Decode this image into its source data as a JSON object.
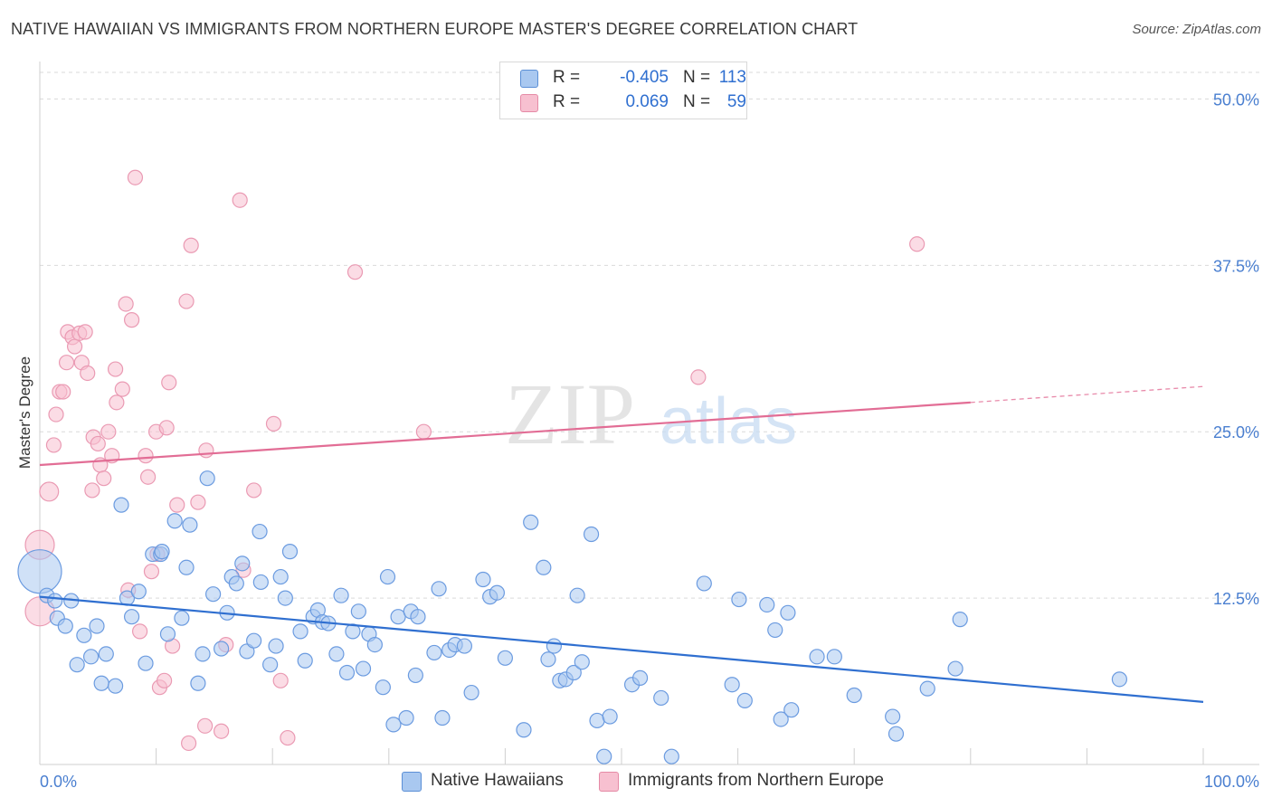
{
  "header": {
    "title": "NATIVE HAWAIIAN VS IMMIGRANTS FROM NORTHERN EUROPE MASTER'S DEGREE CORRELATION CHART",
    "source": "Source: ZipAtlas.com"
  },
  "watermark": {
    "zip": "ZIP",
    "atlas": "atlas"
  },
  "legend": {
    "rows": [
      {
        "r_label": "R =",
        "r_value": "-0.405",
        "n_label": "N =",
        "n_value": "113",
        "color": "#a9c8f0",
        "border": "#5b8fd6"
      },
      {
        "r_label": "R =",
        "r_value": "0.069",
        "n_label": "N =",
        "n_value": "59",
        "color": "#f7c0d0",
        "border": "#e58aa6"
      }
    ]
  },
  "bottom_legend": [
    {
      "label": "Native Hawaiians",
      "color": "#a9c8f0",
      "border": "#5b8fd6"
    },
    {
      "label": "Immigrants from Northern Europe",
      "color": "#f7c0d0",
      "border": "#e58aa6"
    }
  ],
  "chart_data": {
    "type": "scatter",
    "title": "NATIVE HAWAIIAN VS IMMIGRANTS FROM NORTHERN EUROPE MASTER'S DEGREE CORRELATION CHART",
    "xlabel": "",
    "ylabel": "Master's Degree",
    "xlim": [
      0,
      100
    ],
    "ylim": [
      0,
      52
    ],
    "x_tick_labels": [
      "0.0%",
      "100.0%"
    ],
    "y_ticks": [
      12.5,
      25.0,
      37.5,
      50.0
    ],
    "y_tick_labels": [
      "12.5%",
      "25.0%",
      "37.5%",
      "50.0%"
    ],
    "grid": true,
    "colors": {
      "blue_fill": "#a9c8f0",
      "blue_stroke": "#6b9be0",
      "blue_line": "#2f6fd0",
      "pink_fill": "#f7c0d0",
      "pink_stroke": "#ea9ab3",
      "pink_line": "#e26d95",
      "tick_text": "#4a7fd0",
      "grid": "#d9d9d9"
    },
    "series": [
      {
        "name": "Native Hawaiians",
        "r": -0.405,
        "n": 113,
        "trend": {
          "x0": 0,
          "y0": 12.6,
          "x1": 100,
          "y1": 4.7
        },
        "points": [
          [
            0,
            14.5,
            3
          ],
          [
            0.6,
            12.7,
            1
          ],
          [
            1.5,
            11.0,
            1
          ],
          [
            1.3,
            12.3,
            1
          ],
          [
            2.2,
            10.4,
            1
          ],
          [
            2.7,
            12.3,
            1
          ],
          [
            3.2,
            7.5,
            1
          ],
          [
            3.8,
            9.7,
            1
          ],
          [
            4.4,
            8.1,
            1
          ],
          [
            4.9,
            10.4,
            1
          ],
          [
            5.3,
            6.1,
            1
          ],
          [
            5.7,
            8.3,
            1
          ],
          [
            6.5,
            5.9,
            1
          ],
          [
            7.0,
            19.5,
            1
          ],
          [
            7.5,
            12.5,
            1
          ],
          [
            7.9,
            11.1,
            1
          ],
          [
            8.5,
            13.0,
            1
          ],
          [
            9.1,
            7.6,
            1
          ],
          [
            9.7,
            15.8,
            1
          ],
          [
            10.4,
            15.8,
            1
          ],
          [
            10.5,
            16.0,
            1
          ],
          [
            11.0,
            9.8,
            1
          ],
          [
            11.6,
            18.3,
            1
          ],
          [
            12.2,
            11.0,
            1
          ],
          [
            12.6,
            14.8,
            1
          ],
          [
            12.9,
            18.0,
            1
          ],
          [
            13.6,
            6.1,
            1
          ],
          [
            14.0,
            8.3,
            1
          ],
          [
            14.4,
            21.5,
            1
          ],
          [
            14.9,
            12.8,
            1
          ],
          [
            15.6,
            8.7,
            1
          ],
          [
            16.1,
            11.4,
            1
          ],
          [
            16.5,
            14.1,
            1
          ],
          [
            16.9,
            13.6,
            1
          ],
          [
            17.4,
            15.1,
            1
          ],
          [
            17.8,
            8.5,
            1
          ],
          [
            18.4,
            9.3,
            1
          ],
          [
            18.9,
            17.5,
            1
          ],
          [
            19.0,
            13.7,
            1
          ],
          [
            19.8,
            7.5,
            1
          ],
          [
            20.3,
            8.9,
            1
          ],
          [
            20.7,
            14.1,
            1
          ],
          [
            21.1,
            12.5,
            1
          ],
          [
            21.5,
            16.0,
            1
          ],
          [
            22.4,
            10.0,
            1
          ],
          [
            22.8,
            7.8,
            1
          ],
          [
            23.5,
            11.1,
            1
          ],
          [
            23.9,
            11.6,
            1
          ],
          [
            24.3,
            10.7,
            1
          ],
          [
            24.8,
            10.6,
            1
          ],
          [
            25.5,
            8.3,
            1
          ],
          [
            25.9,
            12.7,
            1
          ],
          [
            26.4,
            6.9,
            1
          ],
          [
            26.9,
            10.0,
            1
          ],
          [
            27.4,
            11.5,
            1
          ],
          [
            27.8,
            7.2,
            1
          ],
          [
            28.3,
            9.8,
            1
          ],
          [
            28.8,
            9.0,
            1
          ],
          [
            29.5,
            5.8,
            1
          ],
          [
            29.9,
            14.1,
            1
          ],
          [
            30.4,
            3.0,
            1
          ],
          [
            30.8,
            11.1,
            1
          ],
          [
            31.5,
            3.5,
            1
          ],
          [
            31.9,
            11.5,
            1
          ],
          [
            32.3,
            6.7,
            1
          ],
          [
            32.5,
            11.1,
            1
          ],
          [
            33.9,
            8.4,
            1
          ],
          [
            34.3,
            13.2,
            1
          ],
          [
            34.6,
            3.5,
            1
          ],
          [
            35.2,
            8.6,
            1
          ],
          [
            35.7,
            9.0,
            1
          ],
          [
            36.5,
            8.9,
            1
          ],
          [
            37.1,
            5.4,
            1
          ],
          [
            38.1,
            13.9,
            1
          ],
          [
            38.7,
            12.6,
            1
          ],
          [
            39.3,
            12.9,
            1
          ],
          [
            40.0,
            8.0,
            1
          ],
          [
            41.6,
            2.6,
            1
          ],
          [
            42.2,
            18.2,
            1
          ],
          [
            43.3,
            14.8,
            1
          ],
          [
            43.7,
            7.9,
            1
          ],
          [
            44.2,
            8.9,
            1
          ],
          [
            44.7,
            6.3,
            1
          ],
          [
            45.2,
            6.4,
            1
          ],
          [
            45.9,
            6.9,
            1
          ],
          [
            46.2,
            12.7,
            1
          ],
          [
            46.6,
            7.7,
            1
          ],
          [
            47.4,
            17.3,
            1
          ],
          [
            47.9,
            3.3,
            1
          ],
          [
            48.5,
            0.6,
            1
          ],
          [
            49.0,
            3.6,
            1
          ],
          [
            50.9,
            6.0,
            1
          ],
          [
            51.6,
            6.5,
            1
          ],
          [
            53.4,
            5.0,
            1
          ],
          [
            54.3,
            0.6,
            1
          ],
          [
            57.1,
            13.6,
            1
          ],
          [
            59.5,
            6.0,
            1
          ],
          [
            60.1,
            12.4,
            1
          ],
          [
            60.6,
            4.8,
            1
          ],
          [
            62.5,
            12.0,
            1
          ],
          [
            63.2,
            10.1,
            1
          ],
          [
            63.7,
            3.4,
            1
          ],
          [
            64.3,
            11.4,
            1
          ],
          [
            64.6,
            4.1,
            1
          ],
          [
            66.8,
            8.1,
            1
          ],
          [
            68.3,
            8.1,
            1
          ],
          [
            70.0,
            5.2,
            1
          ],
          [
            73.3,
            3.6,
            1
          ],
          [
            73.6,
            2.3,
            1
          ],
          [
            76.3,
            5.7,
            1
          ],
          [
            78.7,
            7.2,
            1
          ],
          [
            79.1,
            10.9,
            1
          ],
          [
            92.8,
            6.4,
            1
          ]
        ]
      },
      {
        "name": "Immigrants from Northern Europe",
        "r": 0.069,
        "n": 59,
        "trend": {
          "x0": 0,
          "y0": 22.5,
          "x1": 80,
          "y1": 27.2,
          "dash_to_x": 100,
          "dash_to_y": 28.4
        },
        "points": [
          [
            0,
            11.5,
            2
          ],
          [
            0,
            16.5,
            2
          ],
          [
            0.8,
            20.5,
            1.3
          ],
          [
            1.2,
            24.0,
            1
          ],
          [
            1.4,
            26.3,
            1
          ],
          [
            1.7,
            28.0,
            1
          ],
          [
            2.0,
            28.0,
            1
          ],
          [
            2.3,
            30.2,
            1
          ],
          [
            2.4,
            32.5,
            1
          ],
          [
            2.8,
            32.1,
            1
          ],
          [
            3.0,
            31.4,
            1
          ],
          [
            3.4,
            32.4,
            1
          ],
          [
            3.6,
            30.2,
            1
          ],
          [
            3.9,
            32.5,
            1
          ],
          [
            4.1,
            29.4,
            1
          ],
          [
            4.5,
            20.6,
            1
          ],
          [
            4.6,
            24.6,
            1
          ],
          [
            5.0,
            24.1,
            1
          ],
          [
            5.2,
            22.5,
            1
          ],
          [
            5.5,
            21.5,
            1
          ],
          [
            5.9,
            25.0,
            1
          ],
          [
            6.2,
            23.2,
            1
          ],
          [
            6.5,
            29.7,
            1
          ],
          [
            6.6,
            27.2,
            1
          ],
          [
            7.1,
            28.2,
            1
          ],
          [
            7.4,
            34.6,
            1
          ],
          [
            7.6,
            13.1,
            1
          ],
          [
            7.9,
            33.4,
            1
          ],
          [
            8.2,
            44.1,
            1
          ],
          [
            8.6,
            10.0,
            1
          ],
          [
            9.1,
            23.2,
            1
          ],
          [
            9.3,
            21.6,
            1
          ],
          [
            9.6,
            14.5,
            1
          ],
          [
            10.0,
            25.0,
            1
          ],
          [
            10.1,
            15.8,
            1
          ],
          [
            10.3,
            5.8,
            1
          ],
          [
            10.7,
            6.3,
            1
          ],
          [
            10.9,
            25.3,
            1
          ],
          [
            11.1,
            28.7,
            1
          ],
          [
            11.4,
            8.9,
            1
          ],
          [
            11.8,
            19.5,
            1
          ],
          [
            12.6,
            34.8,
            1
          ],
          [
            12.8,
            1.6,
            1
          ],
          [
            13.0,
            39.0,
            1
          ],
          [
            13.6,
            19.7,
            1
          ],
          [
            14.2,
            2.9,
            1
          ],
          [
            14.3,
            23.6,
            1
          ],
          [
            15.6,
            2.5,
            1
          ],
          [
            16.0,
            9.0,
            1
          ],
          [
            17.2,
            42.4,
            1
          ],
          [
            17.5,
            14.6,
            1
          ],
          [
            18.4,
            20.6,
            1
          ],
          [
            20.1,
            25.6,
            1
          ],
          [
            20.7,
            6.3,
            1
          ],
          [
            21.3,
            2.0,
            1
          ],
          [
            27.1,
            37.0,
            1
          ],
          [
            33.0,
            25.0,
            1
          ],
          [
            56.6,
            29.1,
            1
          ],
          [
            75.4,
            39.1,
            1
          ]
        ]
      }
    ]
  }
}
